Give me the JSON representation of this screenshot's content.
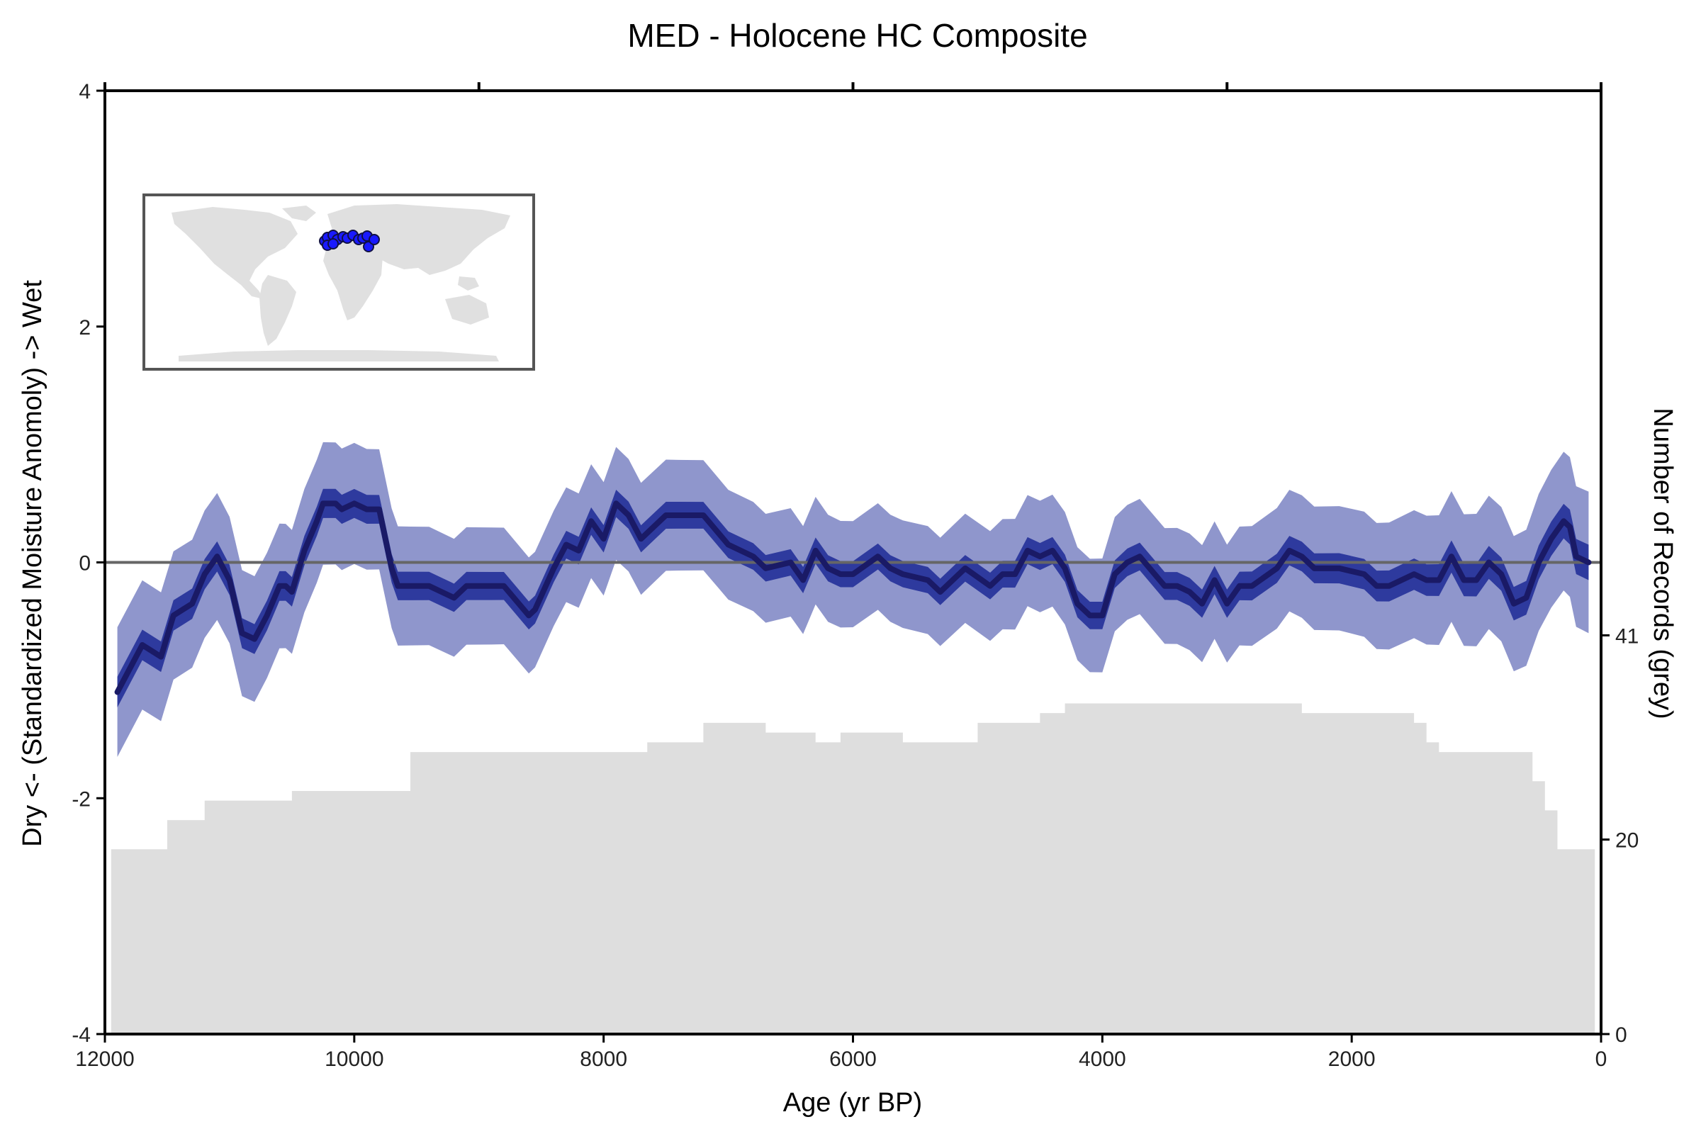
{
  "chart_data": {
    "type": "area",
    "title": "MED - Holocene HC Composite",
    "xlabel": "Age (yr BP)",
    "ylabel": "Dry <- (Standardized Moisture Anomoly) -> Wet",
    "y2label": "Number of Records (grey)",
    "xlim": [
      12000,
      0
    ],
    "ylim": [
      -4,
      4
    ],
    "y2lim": [
      0,
      97
    ],
    "x_reversed": true,
    "grid": false,
    "zero_line": true,
    "xticks": [
      12000,
      10000,
      8000,
      6000,
      4000,
      2000,
      0
    ],
    "xtick_labels": [
      "12000",
      "10000",
      "8000",
      "6000",
      "4000",
      "2000",
      "0"
    ],
    "top_ticks": [
      12000,
      9000,
      6000,
      3000,
      0
    ],
    "yticks": [
      -4,
      -2,
      0,
      2,
      4
    ],
    "ytick_labels": [
      "-4",
      "-2",
      "0",
      "2",
      "4"
    ],
    "y2ticks": [
      0,
      20,
      41
    ],
    "y2tick_labels": [
      "0",
      "20",
      "41"
    ],
    "colors": {
      "median": "#1a1a66",
      "inner_band": "#2e3a9e",
      "outer_band": "#8f96cc",
      "records": "#dedede",
      "zero_line": "#666666",
      "map_land": "#e0e0e0",
      "map_points": "#1a1aff"
    },
    "inset_map": {
      "icon": "world-map-icon",
      "region": "Mediterranean",
      "site_markers": 14
    },
    "records": {
      "x": [
        11950,
        11600,
        11500,
        11300,
        11200,
        10700,
        10500,
        10000,
        9700,
        9550,
        9350,
        7900,
        7800,
        7650,
        7400,
        7200,
        7000,
        6700,
        6300,
        6100,
        5800,
        5600,
        5200,
        5000,
        4800,
        4600,
        4500,
        4300,
        3600,
        3400,
        2400,
        1500,
        1400,
        1300,
        1150,
        650,
        550,
        450,
        350,
        50
      ],
      "y": [
        19,
        19,
        22,
        22,
        24,
        24,
        25,
        25,
        25,
        29,
        29,
        29,
        29,
        30,
        30,
        32,
        32,
        31,
        30,
        31,
        31,
        30,
        30,
        32,
        32,
        32,
        33,
        34,
        34,
        34,
        33,
        32,
        30,
        29,
        29,
        29,
        26,
        23,
        19,
        19
      ]
    },
    "series": [
      {
        "x": [
          11900,
          11700,
          11550,
          11450,
          11300,
          11200,
          11100,
          11000,
          10900,
          10800,
          10700,
          10600,
          10550,
          10500,
          10400,
          10300,
          10250,
          10150,
          10100,
          10000,
          9900,
          9800,
          9700,
          9650,
          9550,
          9400,
          9200,
          9100,
          8900,
          8800,
          8600,
          8550,
          8400,
          8300,
          8200,
          8100,
          8000,
          7900,
          7800,
          7700,
          7600,
          7500,
          7400,
          7200,
          7000,
          6800,
          6700,
          6500,
          6400,
          6300,
          6200,
          6100,
          6000,
          5800,
          5700,
          5600,
          5400,
          5300,
          5200,
          5100,
          4900,
          4800,
          4700,
          4600,
          4500,
          4400,
          4300,
          4200,
          4100,
          4000,
          3900,
          3800,
          3700,
          3500,
          3400,
          3300,
          3200,
          3100,
          3000,
          2900,
          2800,
          2600,
          2500,
          2400,
          2300,
          2100,
          1900,
          1800,
          1700,
          1500,
          1400,
          1300,
          1200,
          1100,
          1000,
          900,
          800,
          700,
          600,
          500,
          400,
          300,
          250,
          200,
          100
        ],
        "values": [
          -1.1,
          -0.7,
          -0.8,
          -0.45,
          -0.35,
          -0.1,
          0.05,
          -0.15,
          -0.6,
          -0.65,
          -0.45,
          -0.2,
          -0.2,
          -0.25,
          0.1,
          0.35,
          0.5,
          0.5,
          0.45,
          0.5,
          0.45,
          0.45,
          -0.05,
          -0.2,
          -0.2,
          -0.2,
          -0.3,
          -0.2,
          -0.2,
          -0.2,
          -0.45,
          -0.4,
          -0.05,
          0.15,
          0.1,
          0.35,
          0.2,
          0.5,
          0.4,
          0.2,
          0.3,
          0.4,
          0.4,
          0.4,
          0.15,
          0.05,
          -0.05,
          0.0,
          -0.15,
          0.1,
          -0.05,
          -0.1,
          -0.1,
          0.05,
          -0.05,
          -0.1,
          -0.15,
          -0.25,
          -0.15,
          -0.05,
          -0.2,
          -0.1,
          -0.1,
          0.1,
          0.05,
          0.1,
          -0.05,
          -0.35,
          -0.45,
          -0.45,
          -0.1,
          0.0,
          0.05,
          -0.2,
          -0.2,
          -0.25,
          -0.35,
          -0.15,
          -0.35,
          -0.2,
          -0.2,
          -0.05,
          0.1,
          0.05,
          -0.05,
          -0.05,
          -0.1,
          -0.2,
          -0.2,
          -0.1,
          -0.15,
          -0.15,
          0.05,
          -0.15,
          -0.15,
          0.0,
          -0.1,
          -0.35,
          -0.3,
          0.0,
          0.2,
          0.35,
          0.3,
          0.05,
          0.0
        ]
      }
    ],
    "bands": [
      {
        "level": "outer",
        "half_width": [
          0.55,
          0.5,
          0.45,
          0.5,
          0.6
        ]
      },
      {
        "level": "inner",
        "half_width": [
          0.13,
          0.12,
          0.11,
          0.12,
          0.15
        ]
      }
    ]
  }
}
